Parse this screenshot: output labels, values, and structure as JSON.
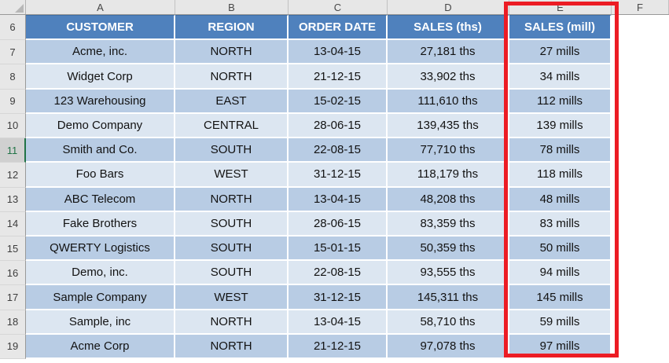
{
  "colors": {
    "table_header_bg": "#4f81bd",
    "row_fill_dark": "#b8cce4",
    "row_fill_light": "#dce6f1",
    "highlight_box": "#ec1c24",
    "active_row_accent": "#217346"
  },
  "spreadsheet": {
    "column_letters": [
      "A",
      "B",
      "C",
      "D",
      "E",
      "F"
    ],
    "row_numbers": [
      6,
      7,
      8,
      9,
      10,
      11,
      12,
      13,
      14,
      15,
      16,
      17,
      18,
      19
    ],
    "active_row_number": 11,
    "highlighted_column": "E"
  },
  "table": {
    "headers": [
      "CUSTOMER",
      "REGION",
      "ORDER DATE",
      "SALES (ths)",
      "SALES (mill)"
    ],
    "rows": [
      {
        "customer": "Acme, inc.",
        "region": "NORTH",
        "order_date": "13-04-15",
        "sales_ths": "27,181 ths",
        "sales_mill": "27 mills"
      },
      {
        "customer": "Widget Corp",
        "region": "NORTH",
        "order_date": "21-12-15",
        "sales_ths": "33,902 ths",
        "sales_mill": "34 mills"
      },
      {
        "customer": "123 Warehousing",
        "region": "EAST",
        "order_date": "15-02-15",
        "sales_ths": "111,610 ths",
        "sales_mill": "112 mills"
      },
      {
        "customer": "Demo Company",
        "region": "CENTRAL",
        "order_date": "28-06-15",
        "sales_ths": "139,435 ths",
        "sales_mill": "139 mills"
      },
      {
        "customer": "Smith and Co.",
        "region": "SOUTH",
        "order_date": "22-08-15",
        "sales_ths": "77,710 ths",
        "sales_mill": "78 mills"
      },
      {
        "customer": "Foo Bars",
        "region": "WEST",
        "order_date": "31-12-15",
        "sales_ths": "118,179 ths",
        "sales_mill": "118 mills"
      },
      {
        "customer": "ABC Telecom",
        "region": "NORTH",
        "order_date": "13-04-15",
        "sales_ths": "48,208 ths",
        "sales_mill": "48 mills"
      },
      {
        "customer": "Fake Brothers",
        "region": "SOUTH",
        "order_date": "28-06-15",
        "sales_ths": "83,359 ths",
        "sales_mill": "83 mills"
      },
      {
        "customer": "QWERTY Logistics",
        "region": "SOUTH",
        "order_date": "15-01-15",
        "sales_ths": "50,359 ths",
        "sales_mill": "50 mills"
      },
      {
        "customer": "Demo, inc.",
        "region": "SOUTH",
        "order_date": "22-08-15",
        "sales_ths": "93,555 ths",
        "sales_mill": "94 mills"
      },
      {
        "customer": "Sample Company",
        "region": "WEST",
        "order_date": "31-12-15",
        "sales_ths": "145,311 ths",
        "sales_mill": "145 mills"
      },
      {
        "customer": "Sample, inc",
        "region": "NORTH",
        "order_date": "13-04-15",
        "sales_ths": "58,710 ths",
        "sales_mill": "59 mills"
      },
      {
        "customer": "Acme Corp",
        "region": "NORTH",
        "order_date": "21-12-15",
        "sales_ths": "97,078 ths",
        "sales_mill": "97 mills"
      }
    ]
  }
}
